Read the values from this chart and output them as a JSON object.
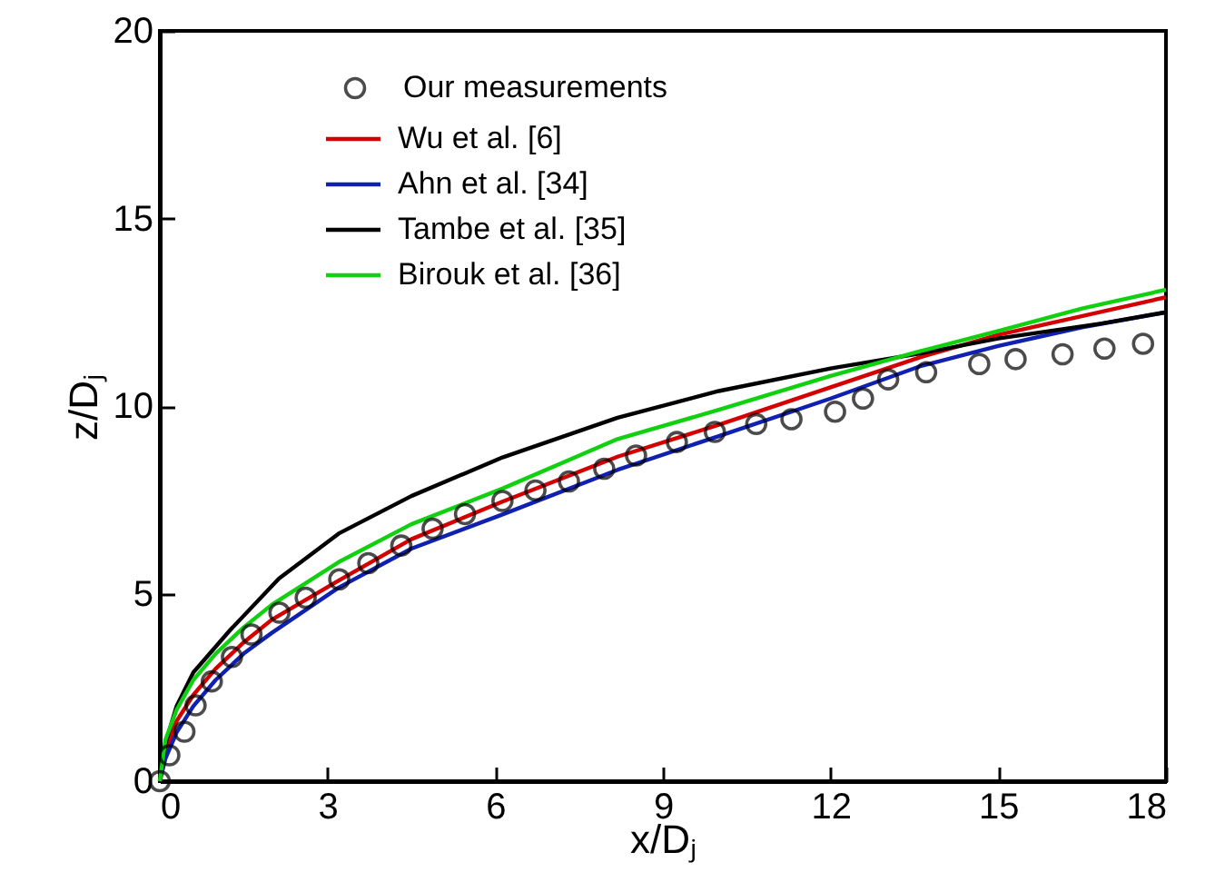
{
  "chart_data": {
    "type": "line",
    "xlabel": "x/Dⱼ",
    "ylabel": "z/Dⱼ",
    "xlim": [
      0,
      18
    ],
    "xticks": [
      0,
      3,
      6,
      9,
      12,
      15,
      18
    ],
    "ylim": [
      0,
      20
    ],
    "yticks": [
      0,
      5,
      10,
      15,
      20
    ],
    "grid": false,
    "legend": "top left",
    "series": [
      {
        "name": "Our measurements",
        "type": "scatter",
        "marker": "circle",
        "color": "#000000",
        "x": [
          0,
          0.17,
          0.44,
          0.64,
          0.93,
          1.29,
          1.64,
          2.14,
          2.61,
          3.21,
          3.73,
          4.32,
          4.88,
          5.46,
          6.13,
          6.72,
          7.32,
          7.95,
          8.52,
          9.25,
          9.93,
          10.67,
          11.3,
          12.08,
          12.58,
          13.03,
          13.71,
          14.66,
          15.31,
          16.15,
          16.9,
          17.59
        ],
        "values": [
          0,
          0.69,
          1.32,
          2.02,
          2.66,
          3.31,
          3.91,
          4.49,
          4.89,
          5.38,
          5.81,
          6.28,
          6.73,
          7.12,
          7.47,
          7.75,
          7.99,
          8.33,
          8.68,
          9.04,
          9.31,
          9.52,
          9.65,
          9.85,
          10.2,
          10.71,
          10.9,
          11.12,
          11.25,
          11.38,
          11.53,
          11.66
        ]
      },
      {
        "name": "Wu et al. [6]",
        "type": "line",
        "color": "#d40000",
        "x": [
          0,
          0.1,
          0.3,
          0.6,
          1,
          1.5,
          2,
          3.2,
          4.5,
          6.13,
          8.19,
          10,
          12,
          13.6,
          15,
          17.07,
          18
        ],
        "values": [
          0,
          0.8,
          1.6,
          2.3,
          3.0,
          3.7,
          4.3,
          5.35,
          6.45,
          7.45,
          8.65,
          9.5,
          10.5,
          11.3,
          11.9,
          12.59,
          12.9
        ]
      },
      {
        "name": "Ahn et al. [34]",
        "type": "line",
        "color": "#1020b0",
        "x": [
          0,
          0.1,
          0.3,
          0.6,
          1,
          1.5,
          2,
          3.2,
          4.5,
          6.13,
          8.19,
          10,
          12,
          13.6,
          15,
          16.5,
          18
        ],
        "values": [
          0,
          0.6,
          1.3,
          2.0,
          2.7,
          3.4,
          3.95,
          5.16,
          6.2,
          7.11,
          8.3,
          9.2,
          10.2,
          11.06,
          11.6,
          12.1,
          12.5
        ]
      },
      {
        "name": "Tambe et al. [35]",
        "type": "line",
        "color": "#000000",
        "x": [
          0,
          0.1,
          0.3,
          0.6,
          1.26,
          2.13,
          3.2,
          4.5,
          6.13,
          8.19,
          10,
          12,
          13.6,
          15,
          16.85,
          18
        ],
        "values": [
          0,
          1.0,
          2.0,
          2.9,
          4.03,
          5.4,
          6.6,
          7.6,
          8.63,
          9.69,
          10.4,
          11.0,
          11.4,
          11.8,
          12.2,
          12.5
        ]
      },
      {
        "name": "Birouk et al. [36]",
        "type": "line",
        "color": "#10d010",
        "x": [
          0,
          0.1,
          0.3,
          0.6,
          1,
          1.5,
          2,
          3.2,
          4.5,
          6.13,
          8.19,
          10,
          12,
          13.6,
          15,
          16.5,
          18
        ],
        "values": [
          0,
          1.1,
          1.9,
          2.7,
          3.4,
          4.1,
          4.7,
          5.84,
          6.85,
          7.8,
          9.12,
          9.9,
          10.8,
          11.46,
          12.0,
          12.6,
          13.1
        ]
      }
    ]
  }
}
